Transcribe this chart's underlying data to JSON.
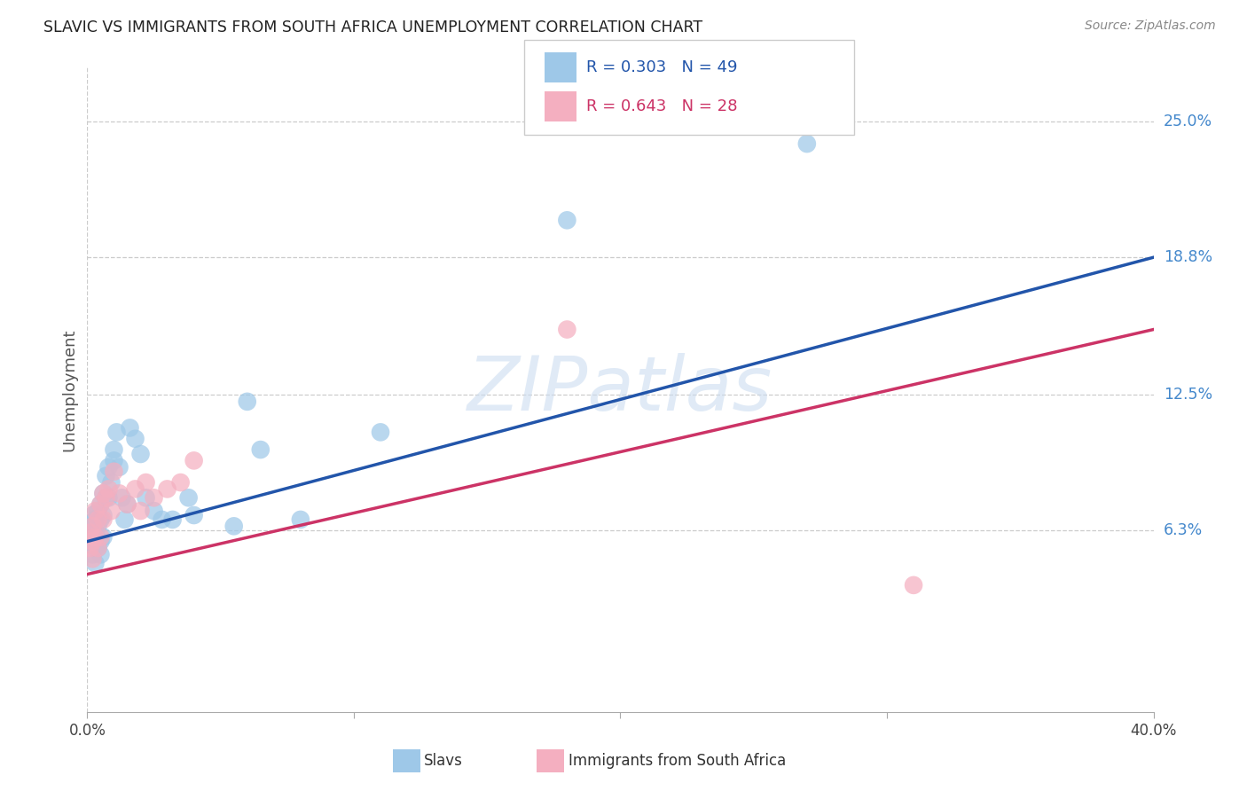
{
  "title": "SLAVIC VS IMMIGRANTS FROM SOUTH AFRICA UNEMPLOYMENT CORRELATION CHART",
  "source": "Source: ZipAtlas.com",
  "ylabel": "Unemployment",
  "ytick_labels": [
    "6.3%",
    "12.5%",
    "18.8%",
    "25.0%"
  ],
  "ytick_vals": [
    0.063,
    0.125,
    0.188,
    0.25
  ],
  "xrange": [
    0.0,
    0.4
  ],
  "yrange": [
    -0.02,
    0.275
  ],
  "legend_r_blue": "R = 0.303   N = 49",
  "legend_r_pink": "R = 0.643   N = 28",
  "legend_label_blue": "Slavs",
  "legend_label_pink": "Immigrants from South Africa",
  "watermark": "ZIPatlas",
  "blue_scatter_color": "#9ec8e8",
  "pink_scatter_color": "#f4afc0",
  "blue_line_color": "#2255aa",
  "pink_line_color": "#cc3366",
  "grid_color": "#cccccc",
  "blue_intercept": 0.058,
  "blue_slope": 0.325,
  "pink_intercept": 0.043,
  "pink_slope": 0.28,
  "slavs_x": [
    0.001,
    0.001,
    0.001,
    0.002,
    0.002,
    0.002,
    0.002,
    0.003,
    0.003,
    0.003,
    0.003,
    0.004,
    0.004,
    0.004,
    0.005,
    0.005,
    0.005,
    0.005,
    0.006,
    0.006,
    0.006,
    0.007,
    0.007,
    0.008,
    0.008,
    0.009,
    0.01,
    0.01,
    0.011,
    0.012,
    0.013,
    0.014,
    0.015,
    0.016,
    0.018,
    0.02,
    0.022,
    0.025,
    0.028,
    0.032,
    0.038,
    0.04,
    0.055,
    0.06,
    0.065,
    0.08,
    0.11,
    0.18,
    0.27
  ],
  "slavs_y": [
    0.062,
    0.06,
    0.058,
    0.07,
    0.065,
    0.058,
    0.052,
    0.068,
    0.062,
    0.055,
    0.048,
    0.072,
    0.065,
    0.055,
    0.075,
    0.068,
    0.058,
    0.052,
    0.08,
    0.07,
    0.06,
    0.088,
    0.078,
    0.092,
    0.078,
    0.085,
    0.1,
    0.095,
    0.108,
    0.092,
    0.078,
    0.068,
    0.075,
    0.11,
    0.105,
    0.098,
    0.078,
    0.072,
    0.068,
    0.068,
    0.078,
    0.07,
    0.065,
    0.122,
    0.1,
    0.068,
    0.108,
    0.205,
    0.24
  ],
  "sa_x": [
    0.001,
    0.001,
    0.002,
    0.002,
    0.002,
    0.003,
    0.003,
    0.004,
    0.004,
    0.005,
    0.005,
    0.006,
    0.006,
    0.007,
    0.008,
    0.009,
    0.01,
    0.012,
    0.015,
    0.018,
    0.02,
    0.022,
    0.025,
    0.03,
    0.035,
    0.04,
    0.18,
    0.31
  ],
  "sa_y": [
    0.062,
    0.055,
    0.065,
    0.058,
    0.05,
    0.072,
    0.06,
    0.068,
    0.055,
    0.075,
    0.06,
    0.08,
    0.068,
    0.078,
    0.082,
    0.072,
    0.09,
    0.08,
    0.075,
    0.082,
    0.072,
    0.085,
    0.078,
    0.082,
    0.085,
    0.095,
    0.155,
    0.038
  ]
}
